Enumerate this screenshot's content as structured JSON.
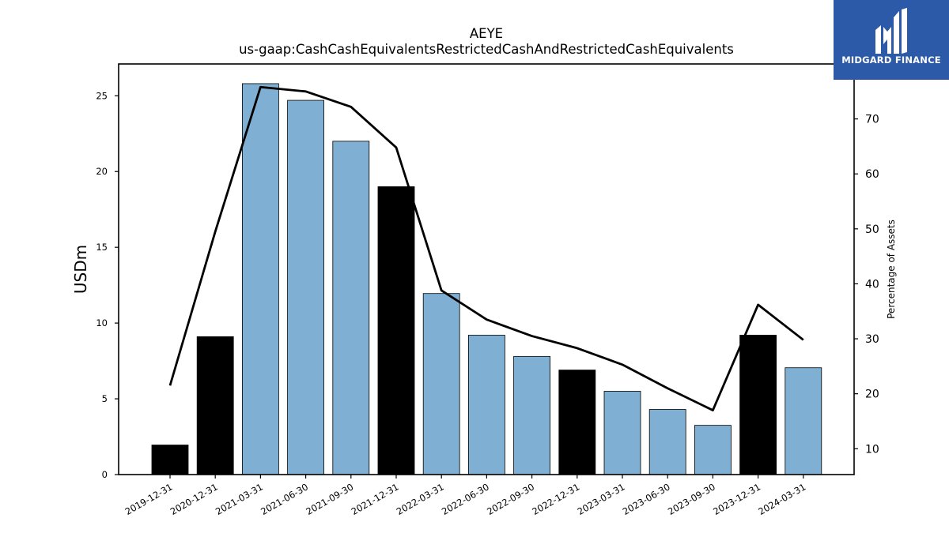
{
  "brand": {
    "name": "MIDGARD FINANCE",
    "color": "#2c5aa8"
  },
  "chart_data": {
    "type": "bar",
    "title": "AEYE",
    "subtitle": "us-gaap:CashCashEquivalentsRestrictedCashAndRestrictedCashEquivalents",
    "ylabel": "USDm",
    "y2label": "Percentage of Assets",
    "categories": [
      "2019-12-31",
      "2020-12-31",
      "2021-03-31",
      "2021-06-30",
      "2021-09-30",
      "2021-12-31",
      "2022-03-31",
      "2022-06-30",
      "2022-09-30",
      "2022-12-31",
      "2023-03-31",
      "2023-06-30",
      "2023-09-30",
      "2023-12-31",
      "2024-03-31"
    ],
    "series": [
      {
        "type": "bar",
        "values": [
          1.95,
          9.1,
          25.8,
          24.7,
          22.0,
          19.0,
          11.95,
          9.2,
          7.8,
          6.9,
          5.5,
          4.3,
          3.25,
          9.2,
          7.05
        ],
        "colors": [
          "#000000",
          "#000000",
          "#7fb0d3",
          "#7fb0d3",
          "#7fb0d3",
          "#000000",
          "#7fb0d3",
          "#7fb0d3",
          "#7fb0d3",
          "#000000",
          "#7fb0d3",
          "#7fb0d3",
          "#7fb0d3",
          "#000000",
          "#7fb0d3"
        ]
      },
      {
        "type": "line",
        "axis": "right",
        "color": "#000000",
        "values": [
          21.5,
          49.5,
          75.8,
          75.0,
          72.2,
          64.8,
          38.8,
          33.5,
          30.5,
          28.3,
          25.3,
          21.0,
          17.0,
          36.2,
          29.8
        ]
      }
    ],
    "ylim": [
      0,
      27.1
    ],
    "y2lim": [
      5.3,
      80.0
    ],
    "yticks": [
      0,
      5,
      10,
      15,
      20,
      25
    ],
    "y2ticks": [
      10,
      20,
      30,
      40,
      50,
      60,
      70
    ],
    "grid": false,
    "legend": "none"
  }
}
